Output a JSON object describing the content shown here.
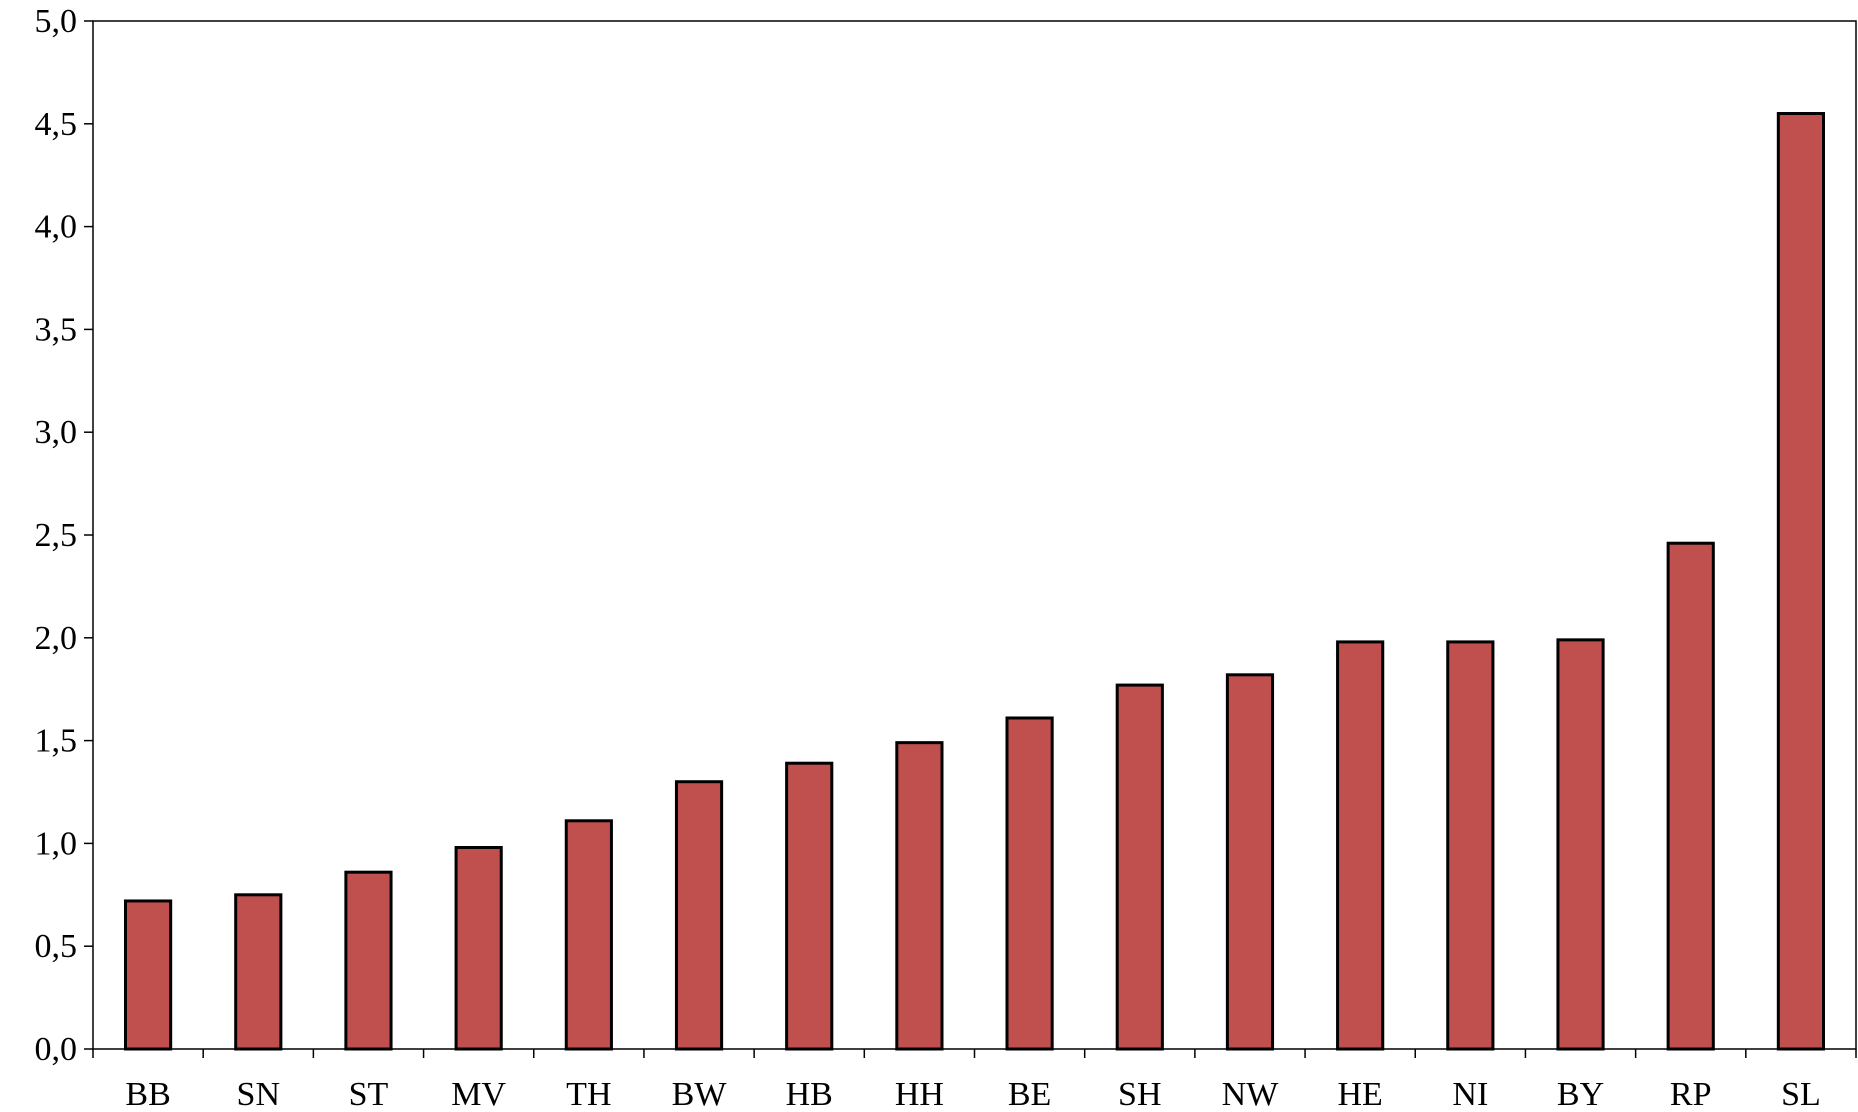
{
  "chart_data": {
    "type": "bar",
    "title": "",
    "xlabel": "",
    "ylabel": "",
    "categories": [
      "BB",
      "SN",
      "ST",
      "MV",
      "TH",
      "BW",
      "HB",
      "HH",
      "BE",
      "SH",
      "NW",
      "HE",
      "NI",
      "BY",
      "RP",
      "SL"
    ],
    "values": [
      0.72,
      0.75,
      0.86,
      0.98,
      1.11,
      1.3,
      1.39,
      1.49,
      1.61,
      1.77,
      1.82,
      1.98,
      1.98,
      1.99,
      2.46,
      4.55
    ],
    "ylim": [
      0,
      5
    ],
    "yticks": [
      "0,0",
      "0,5",
      "1,0",
      "1,5",
      "2,0",
      "2,5",
      "3,0",
      "3,5",
      "4,0",
      "4,5",
      "5,0"
    ],
    "grid": false,
    "legend": "none",
    "bar_color": "#c0504d",
    "bar_edge_color": "#000000"
  }
}
